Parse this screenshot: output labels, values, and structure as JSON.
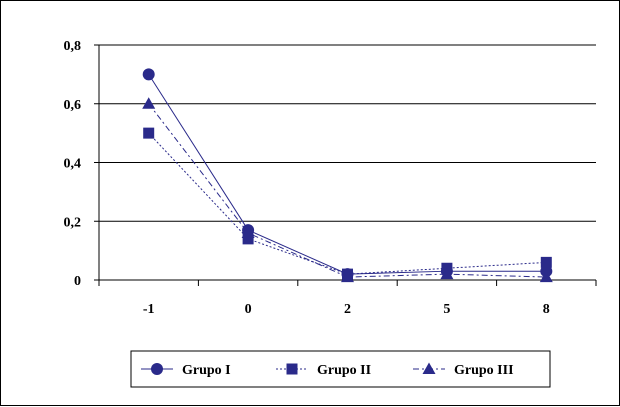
{
  "chart_data": {
    "type": "line",
    "title": "",
    "xlabel": "",
    "ylabel": "",
    "categories": [
      "-1",
      "0",
      "2",
      "5",
      "8"
    ],
    "y_ticks": [
      "0",
      "0,2",
      "0,4",
      "0,6",
      "0,8"
    ],
    "ylim": [
      0,
      0.8
    ],
    "grid": true,
    "legend_position": "bottom",
    "series": [
      {
        "name": "Grupo I",
        "marker": "circle",
        "dash": "solid",
        "values": [
          0.7,
          0.17,
          0.02,
          0.03,
          0.03
        ]
      },
      {
        "name": "Grupo II",
        "marker": "square",
        "dash": "dotted",
        "values": [
          0.5,
          0.14,
          0.02,
          0.04,
          0.06
        ]
      },
      {
        "name": "Grupo III",
        "marker": "triangle",
        "dash": "dashdot",
        "values": [
          0.6,
          0.16,
          0.01,
          0.02,
          0.01
        ]
      }
    ],
    "colors": {
      "series": "#2a2a8a",
      "grid": "#000000",
      "axis": "#000000"
    }
  }
}
